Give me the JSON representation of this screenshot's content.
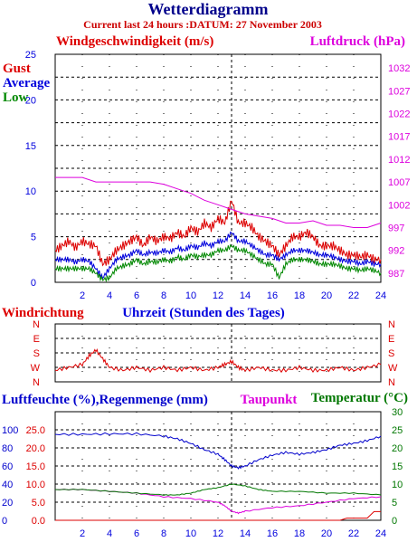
{
  "title": "Wetterdiagramm",
  "subtitle": "Current last 24 hours :DATUM: 27 November 2003",
  "colors": {
    "title": "#00008b",
    "subtitle": "#cc0000",
    "gust": "#dd0000",
    "average": "#0000dd",
    "low": "#008800",
    "pressure": "#dd00dd",
    "humidity": "#0000cc",
    "rain": "#dd0000",
    "dewpoint": "#dd00dd",
    "temperature": "#007700",
    "grid": "#000000"
  },
  "chart_data": [
    {
      "type": "line",
      "id": "wind",
      "ylabel_left": "Windgeschwindigkeit (m/s)",
      "ylabel_right": "Luftdruck (hPa)",
      "legend": [
        "Gust",
        "Average",
        "Low"
      ],
      "xlim": [
        0,
        24
      ],
      "ylim_left": [
        0,
        25
      ],
      "ylim_right": [
        985,
        1035
      ],
      "x_ticks": [
        2,
        4,
        6,
        8,
        10,
        12,
        14,
        16,
        18,
        20,
        22,
        24
      ],
      "y_ticks_left": [
        0,
        5,
        10,
        15,
        20,
        25
      ],
      "y_ticks_right": [
        987,
        992,
        997,
        1002,
        1007,
        1012,
        1017,
        1022,
        1027,
        1032
      ],
      "series": [
        {
          "name": "Gust",
          "x": [
            0,
            0.5,
            1,
            1.5,
            2,
            2.5,
            3,
            3.5,
            4,
            4.5,
            5,
            5.5,
            6,
            6.5,
            7,
            7.5,
            8,
            8.5,
            9,
            9.5,
            10,
            10.5,
            11,
            11.5,
            12,
            12.5,
            13,
            13.5,
            14,
            14.5,
            15,
            15.5,
            16,
            16.5,
            17,
            17.5,
            18,
            18.5,
            19,
            19.5,
            20,
            20.5,
            21,
            21.5,
            22,
            22.5,
            23,
            23.5,
            24
          ],
          "values": [
            3.5,
            4,
            4.5,
            3.8,
            4.5,
            4.2,
            4,
            2,
            2.5,
            3.5,
            4,
            4.5,
            5,
            4,
            5,
            4.5,
            5,
            4.8,
            5.5,
            5,
            6,
            5.5,
            6.5,
            6,
            7,
            6.5,
            9,
            6.5,
            6.5,
            6,
            5,
            4.5,
            4,
            3,
            4,
            5,
            5,
            5.5,
            5,
            4,
            4,
            4,
            3.5,
            3,
            3,
            2.8,
            3,
            2.5,
            2.5
          ]
        },
        {
          "name": "Average",
          "x": [
            0,
            0.5,
            1,
            1.5,
            2,
            2.5,
            3,
            3.5,
            4,
            4.5,
            5,
            5.5,
            6,
            6.5,
            7,
            7.5,
            8,
            8.5,
            9,
            9.5,
            10,
            10.5,
            11,
            11.5,
            12,
            12.5,
            13,
            13.5,
            14,
            14.5,
            15,
            15.5,
            16,
            16.5,
            17,
            17.5,
            18,
            18.5,
            19,
            19.5,
            20,
            20.5,
            21,
            21.5,
            22,
            22.5,
            23,
            23.5,
            24
          ],
          "values": [
            2.5,
            2.5,
            2.5,
            2.2,
            2.5,
            2.3,
            1.5,
            0.5,
            1.5,
            2.5,
            2.8,
            3,
            3.5,
            3,
            3.3,
            3.2,
            3.5,
            3.3,
            3.8,
            3.5,
            4,
            3.8,
            4.3,
            4,
            4.5,
            4.5,
            5.5,
            4.5,
            4.5,
            4,
            3.5,
            3,
            3,
            2.5,
            3,
            3.5,
            3.5,
            3.5,
            3.3,
            3,
            3,
            2.8,
            2.5,
            2.3,
            2.3,
            2,
            2.3,
            2,
            2
          ]
        },
        {
          "name": "Low",
          "x": [
            0,
            0.5,
            1,
            1.5,
            2,
            2.5,
            3,
            3.5,
            4,
            4.5,
            5,
            5.5,
            6,
            6.5,
            7,
            7.5,
            8,
            8.5,
            9,
            9.5,
            10,
            10.5,
            11,
            11.5,
            12,
            12.5,
            13,
            13.5,
            14,
            14.5,
            15,
            15.5,
            16,
            16.5,
            17,
            17.5,
            18,
            18.5,
            19,
            19.5,
            20,
            20.5,
            21,
            21.5,
            22,
            22.5,
            23,
            23.5,
            24
          ],
          "values": [
            1.5,
            1.5,
            1.5,
            1.5,
            1.5,
            1.5,
            1,
            0.3,
            0.5,
            1.5,
            1.8,
            2,
            2.5,
            2,
            2.3,
            2.2,
            2.5,
            2.3,
            2.8,
            2.5,
            3,
            2.8,
            3,
            3,
            3.5,
            3.5,
            4,
            3.5,
            3.5,
            3,
            2.5,
            2,
            2,
            0.5,
            2,
            2.5,
            2.5,
            2.5,
            2.3,
            2,
            2,
            2,
            1.8,
            1.5,
            1.5,
            1.3,
            1.5,
            1.3,
            1
          ]
        },
        {
          "name": "Luftdruck",
          "axis": "right",
          "x": [
            0,
            1,
            2,
            3,
            4,
            5,
            6,
            7,
            8,
            9,
            10,
            11,
            12,
            13,
            14,
            15,
            16,
            17,
            18,
            19,
            20,
            21,
            22,
            23,
            24
          ],
          "values": [
            1008,
            1008,
            1008,
            1007,
            1007,
            1007,
            1007,
            1007,
            1006.5,
            1005.5,
            1004.5,
            1003,
            1002,
            1001,
            1000,
            999.5,
            999,
            998,
            998,
            998.5,
            997.5,
            997.5,
            997,
            997,
            998
          ]
        }
      ]
    },
    {
      "type": "line",
      "id": "direction",
      "ylabel_left": "Windrichtung",
      "xlabel": "Uhrzeit (Stunden des Tages)",
      "y_ticks": [
        "N",
        "W",
        "S",
        "E",
        "N"
      ],
      "series": [
        {
          "name": "Windrichtung",
          "x": [
            0,
            1,
            2,
            2.5,
            3,
            3.5,
            4,
            5,
            6,
            7,
            8,
            9,
            10,
            11,
            12,
            12.5,
            13,
            13.5,
            14,
            15,
            16,
            17,
            18,
            19,
            20,
            21,
            22,
            23,
            24
          ],
          "values": [
            0.2,
            0.25,
            0.3,
            0.45,
            0.55,
            0.4,
            0.25,
            0.2,
            0.25,
            0.2,
            0.25,
            0.2,
            0.25,
            0.2,
            0.25,
            0.3,
            0.35,
            0.25,
            0.2,
            0.25,
            0.2,
            0.2,
            0.25,
            0.2,
            0.2,
            0.25,
            0.2,
            0.25,
            0.3
          ]
        }
      ]
    },
    {
      "type": "line",
      "id": "humidity",
      "ylabel_left": "Luftfeuchte (%),Regenmenge (mm)",
      "ylabel_mid": "Taupunkt",
      "ylabel_right": "Temperatur (°C)",
      "xlim": [
        0,
        24
      ],
      "y_ticks_left_outer": [
        0,
        20,
        40,
        60,
        80,
        100
      ],
      "y_ticks_left_inner": [
        "0.0",
        "5.0",
        "10.0",
        "15.0",
        "20.0",
        "25.0"
      ],
      "y_ticks_right": [
        0,
        5,
        10,
        15,
        20,
        25,
        30
      ],
      "x_ticks": [
        2,
        4,
        6,
        8,
        10,
        12,
        14,
        16,
        18,
        20,
        22,
        24
      ],
      "series": [
        {
          "name": "Luftfeuchte",
          "x": [
            0,
            2,
            4,
            6,
            8,
            9,
            10,
            11,
            12,
            12.5,
            13,
            13.5,
            14,
            15,
            16,
            17,
            18,
            19,
            20,
            21,
            22,
            23,
            24
          ],
          "values": [
            95,
            95,
            95.5,
            95.5,
            93,
            90,
            85,
            78,
            73,
            67,
            60,
            58,
            60,
            67,
            72,
            75,
            73,
            75,
            78,
            83,
            85,
            88,
            93
          ]
        },
        {
          "name": "Regenmenge",
          "x": [
            0,
            21,
            21.5,
            22,
            23,
            23.5,
            24
          ],
          "values": [
            0,
            0,
            0.5,
            0.5,
            0.5,
            2,
            2
          ]
        },
        {
          "name": "Taupunkt",
          "x": [
            0,
            2,
            4,
            6,
            8,
            10,
            12,
            12.5,
            13,
            13.5,
            14,
            16,
            18,
            20,
            22,
            24
          ],
          "values": [
            8.5,
            8.5,
            8,
            7.5,
            6.5,
            6,
            5,
            4,
            2.5,
            2,
            2.5,
            3.5,
            4,
            5,
            6,
            6.5
          ]
        },
        {
          "name": "Temperatur",
          "x": [
            0,
            2,
            4,
            6,
            8,
            9,
            10,
            11,
            12,
            13,
            14,
            15,
            16,
            18,
            20,
            22,
            24
          ],
          "values": [
            8.5,
            8.5,
            8,
            7.5,
            7,
            7,
            7.5,
            8.5,
            9,
            10,
            9.5,
            8.5,
            8,
            8,
            7.5,
            7.5,
            7
          ]
        }
      ]
    }
  ]
}
